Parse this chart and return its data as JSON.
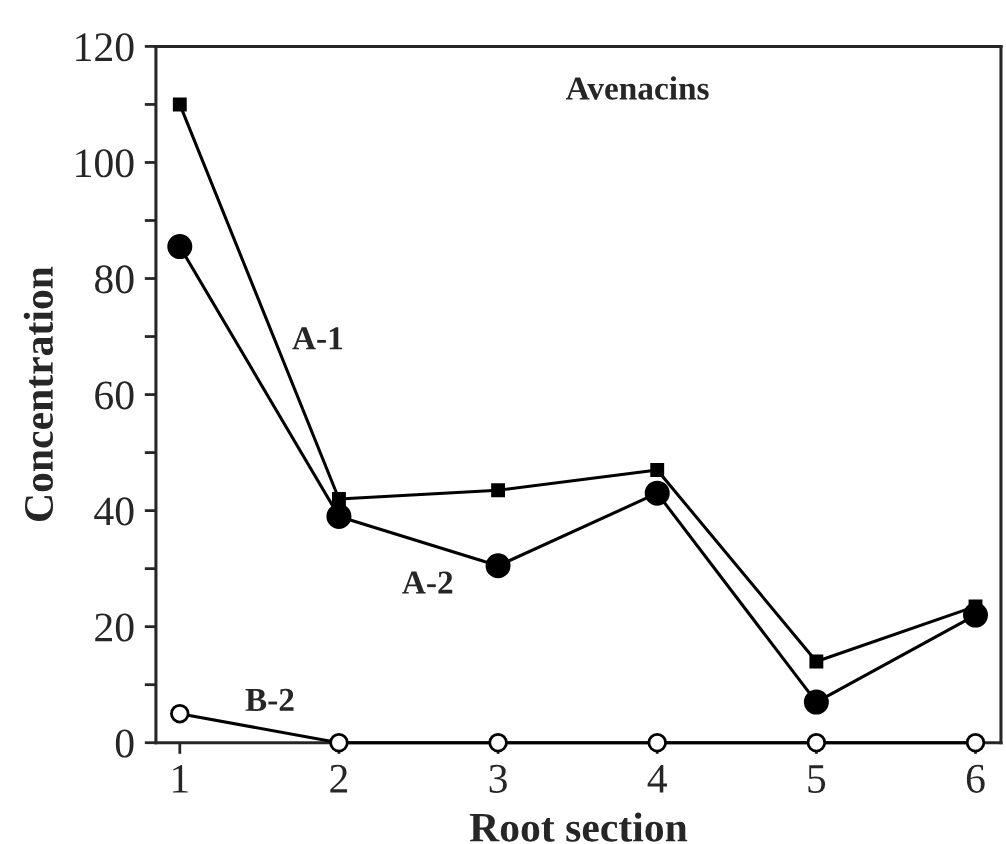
{
  "chart_data": {
    "type": "line",
    "title": "Avenacins",
    "xlabel": "Root section",
    "ylabel": "Concentration",
    "x": [
      1,
      2,
      3,
      4,
      5,
      6
    ],
    "series": [
      {
        "name": "A-1",
        "color": "#000000",
        "marker": "square",
        "values": [
          110,
          42,
          43.5,
          47,
          14,
          23.5
        ]
      },
      {
        "name": "A-2",
        "color": "#000000",
        "marker": "circle",
        "values": [
          85.5,
          39,
          30.5,
          43,
          7,
          22
        ]
      },
      {
        "name": "B-2",
        "color": "#000000",
        "marker": "open circle",
        "values": [
          5,
          0,
          0,
          0,
          0,
          0
        ]
      }
    ],
    "xlim": [
      0.85,
      6.16
    ],
    "xticks": [
      1,
      2,
      3,
      4,
      5,
      6
    ],
    "ylim": [
      0,
      120
    ],
    "yticks": [
      0,
      {
        "value": 10,
        "label": null
      },
      20,
      {
        "value": 30,
        "label": null
      },
      40,
      {
        "value": 50,
        "label": null
      },
      60,
      {
        "value": 70,
        "label": null
      },
      80,
      {
        "value": 90,
        "label": null
      },
      100,
      {
        "value": 110,
        "label": null
      },
      120
    ],
    "grid": false,
    "legend": false,
    "line_style": "solid"
  }
}
